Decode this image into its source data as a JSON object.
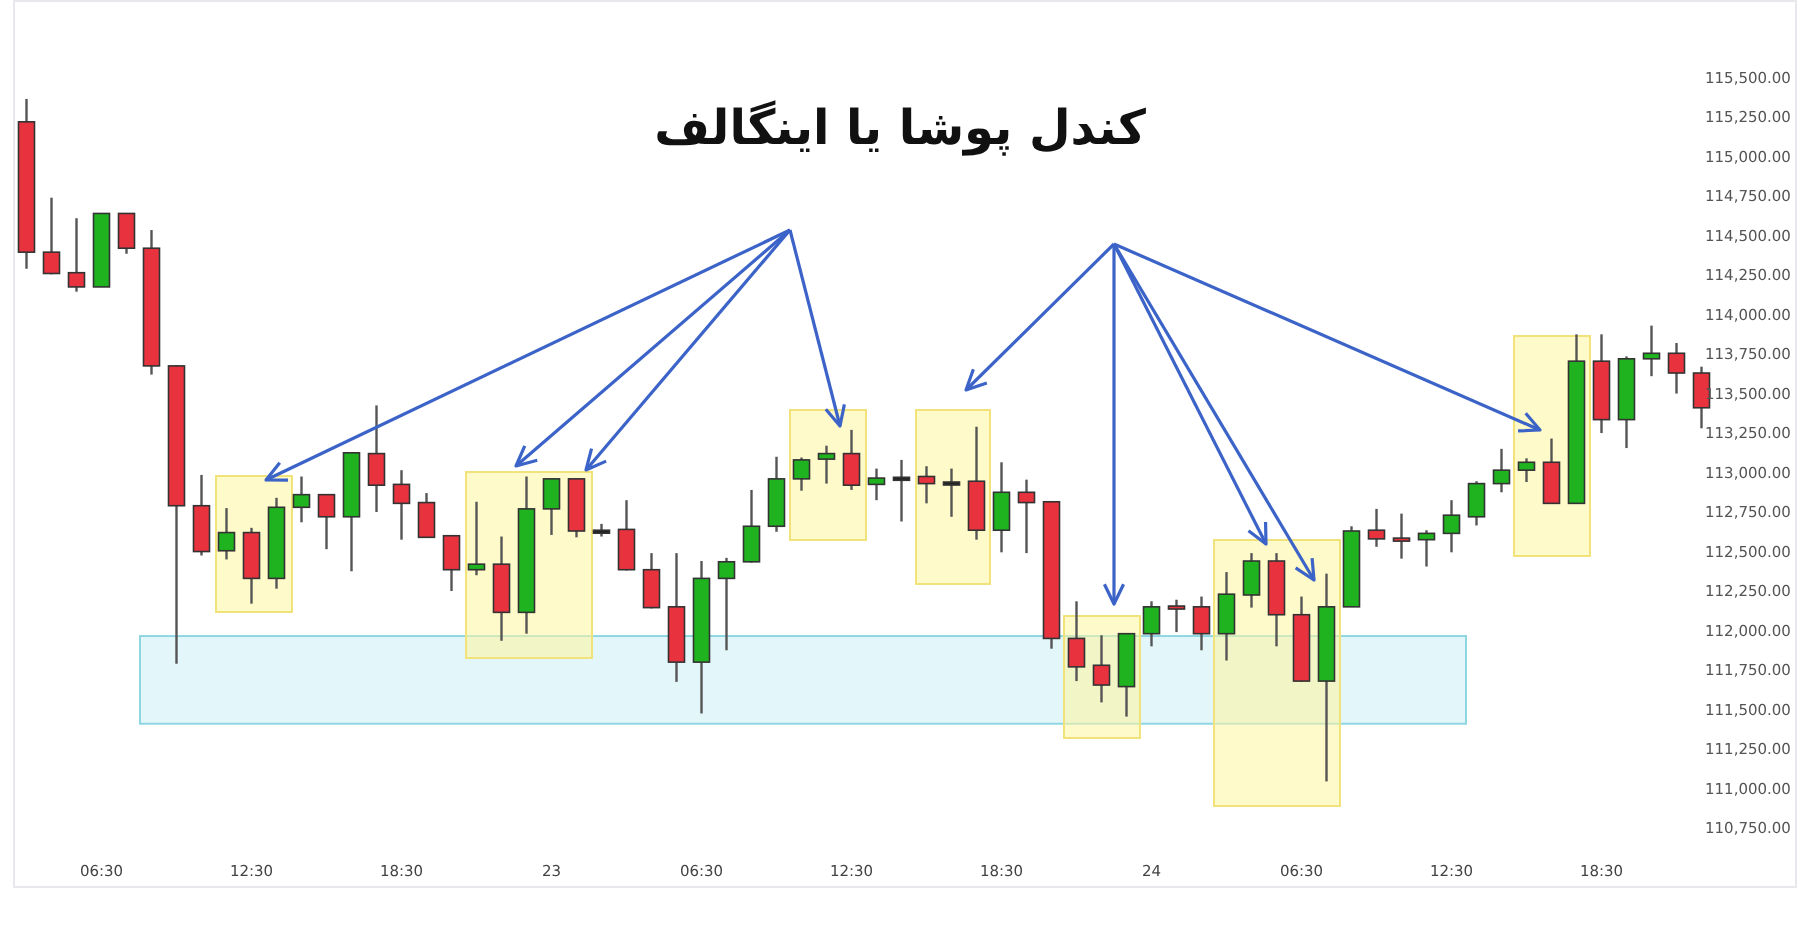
{
  "chart_data": {
    "type": "candlestick",
    "title": "کندل پوشا یا اینگالف",
    "categories": [
      null,
      null,
      null,
      "06:30",
      null,
      null,
      null,
      null,
      null,
      "12:30",
      null,
      null,
      null,
      null,
      null,
      "18:30",
      null,
      null,
      null,
      null,
      null,
      "23",
      null,
      null,
      null,
      null,
      null,
      "06:30",
      null,
      null,
      null,
      null,
      null,
      "12:30",
      null,
      null,
      null,
      null,
      null,
      "18:30",
      null,
      null,
      null,
      null,
      null,
      "24",
      null,
      null,
      null,
      null,
      null,
      "06:30",
      null,
      null,
      null,
      null,
      null,
      "12:30",
      null,
      null,
      null,
      null,
      null,
      "18:30",
      null,
      null,
      null,
      null
    ],
    "ohlc": [
      [
        115220,
        115365,
        114290,
        114395
      ],
      [
        114395,
        114740,
        114255,
        114260
      ],
      [
        114265,
        114610,
        114145,
        114175
      ],
      [
        114175,
        114640,
        114175,
        114640
      ],
      [
        114640,
        114640,
        114385,
        114420
      ],
      [
        114420,
        114535,
        113620,
        113675
      ],
      [
        113675,
        113680,
        111790,
        112790
      ],
      [
        112790,
        112985,
        112475,
        112500
      ],
      [
        112505,
        112775,
        112450,
        112620
      ],
      [
        112620,
        112650,
        112170,
        112330
      ],
      [
        112330,
        112840,
        112265,
        112780
      ],
      [
        112780,
        112975,
        112685,
        112860
      ],
      [
        112860,
        112860,
        112515,
        112720
      ],
      [
        112720,
        113130,
        112375,
        113125
      ],
      [
        113120,
        113425,
        112750,
        112920
      ],
      [
        112925,
        113015,
        112575,
        112805
      ],
      [
        112810,
        112870,
        112590,
        112590
      ],
      [
        112600,
        112600,
        112250,
        112385
      ],
      [
        112385,
        112815,
        112350,
        112420
      ],
      [
        112420,
        112595,
        111935,
        112115
      ],
      [
        112115,
        112975,
        111980,
        112770
      ],
      [
        112770,
        112960,
        112605,
        112960
      ],
      [
        112960,
        112960,
        112590,
        112630
      ],
      [
        112635,
        112675,
        112595,
        112635
      ],
      [
        112640,
        112825,
        112380,
        112385
      ],
      [
        112385,
        112490,
        112140,
        112145
      ],
      [
        112150,
        112490,
        111675,
        111800
      ],
      [
        111800,
        112440,
        111475,
        112330
      ],
      [
        112330,
        112460,
        111875,
        112435
      ],
      [
        112435,
        112890,
        112430,
        112660
      ],
      [
        112660,
        113100,
        112625,
        112960
      ],
      [
        112960,
        113095,
        112885,
        113080
      ],
      [
        113085,
        113170,
        112930,
        113120
      ],
      [
        113120,
        113270,
        112890,
        112920
      ],
      [
        112925,
        113025,
        112825,
        112965
      ],
      [
        112970,
        113080,
        112690,
        112970
      ],
      [
        112975,
        113040,
        112805,
        112930
      ],
      [
        112940,
        113025,
        112720,
        112940
      ],
      [
        112945,
        113290,
        112575,
        112635
      ],
      [
        112635,
        113065,
        112495,
        112875
      ],
      [
        112875,
        112955,
        112490,
        112810
      ],
      [
        112815,
        112815,
        111885,
        111950
      ],
      [
        111950,
        112185,
        111680,
        111770
      ],
      [
        111780,
        111970,
        111545,
        111655
      ],
      [
        111645,
        111980,
        111455,
        111980
      ],
      [
        111980,
        112185,
        111900,
        112150
      ],
      [
        112155,
        112195,
        111990,
        112150
      ],
      [
        112150,
        112215,
        111875,
        111980
      ],
      [
        111980,
        112370,
        111810,
        112230
      ],
      [
        112225,
        112490,
        112145,
        112440
      ],
      [
        112440,
        112490,
        111900,
        112100
      ],
      [
        112100,
        112215,
        111675,
        111680
      ],
      [
        111680,
        112360,
        111045,
        112150
      ],
      [
        112150,
        112660,
        112150,
        112630
      ],
      [
        112635,
        112770,
        112530,
        112580
      ],
      [
        112585,
        112740,
        112455,
        112580
      ],
      [
        112575,
        112635,
        112405,
        112615
      ],
      [
        112615,
        112825,
        112495,
        112730
      ],
      [
        112720,
        112945,
        112665,
        112930
      ],
      [
        112930,
        113150,
        112875,
        113015
      ],
      [
        113015,
        113090,
        112940,
        113065
      ],
      [
        113065,
        113215,
        112805,
        112805
      ],
      [
        112805,
        113875,
        112805,
        113705
      ],
      [
        113705,
        113875,
        113250,
        113335
      ],
      [
        113335,
        113735,
        113155,
        113720
      ],
      [
        113720,
        113930,
        113610,
        113755
      ],
      [
        113755,
        113820,
        113500,
        113630
      ],
      [
        113630,
        113670,
        113280,
        113410
      ]
    ],
    "colors": [
      "#e8333f",
      "#e8333f",
      "#e8333f",
      "#1fb31f",
      "#e8333f",
      "#e8333f",
      "#e8333f",
      "#e8333f",
      "#1fb31f",
      "#e8333f",
      "#1fb31f",
      "#1fb31f",
      "#e8333f",
      "#1fb31f",
      "#e8333f",
      "#e8333f",
      "#e8333f",
      "#e8333f",
      "#1fb31f",
      "#e8333f",
      "#1fb31f",
      "#1fb31f",
      "#e8333f",
      "#222222",
      "#e8333f",
      "#e8333f",
      "#e8333f",
      "#1fb31f",
      "#1fb31f",
      "#1fb31f",
      "#1fb31f",
      "#1fb31f",
      "#1fb31f",
      "#e8333f",
      "#1fb31f",
      "#222222",
      "#e8333f",
      "#222222",
      "#e8333f",
      "#1fb31f",
      "#e8333f",
      "#e8333f",
      "#e8333f",
      "#e8333f",
      "#1fb31f",
      "#1fb31f",
      "#e8333f",
      "#e8333f",
      "#1fb31f",
      "#1fb31f",
      "#e8333f",
      "#e8333f",
      "#1fb31f",
      "#1fb31f",
      "#e8333f",
      "#e8333f",
      "#1fb31f",
      "#1fb31f",
      "#1fb31f",
      "#1fb31f",
      "#1fb31f",
      "#e8333f",
      "#1fb31f",
      "#e8333f",
      "#1fb31f",
      "#1fb31f",
      "#e8333f",
      "#e8333f"
    ],
    "ylim": [
      110750,
      115500
    ],
    "yticks": [
      {
        "value": 110750,
        "label": "110,750.00"
      },
      {
        "value": 111000,
        "label": "111,000.00"
      },
      {
        "value": 111250,
        "label": "111,250.00"
      },
      {
        "value": 111500,
        "label": "111,500.00"
      },
      {
        "value": 111750,
        "label": "111,750.00"
      },
      {
        "value": 112000,
        "label": "112,000.00"
      },
      {
        "value": 112250,
        "label": "112,250.00"
      },
      {
        "value": 112500,
        "label": "112,500.00"
      },
      {
        "value": 112750,
        "label": "112,750.00"
      },
      {
        "value": 113000,
        "label": "113,000.00"
      },
      {
        "value": 113250,
        "label": "113,250.00"
      },
      {
        "value": 113500,
        "label": "113,500.00"
      },
      {
        "value": 113750,
        "label": "113,750.00"
      },
      {
        "value": 114000,
        "label": "114,000.00"
      },
      {
        "value": 114250,
        "label": "114,250.00"
      },
      {
        "value": 114500,
        "label": "114,500.00"
      },
      {
        "value": 114750,
        "label": "114,750.00"
      },
      {
        "value": 115000,
        "label": "115,000.00"
      },
      {
        "value": 115250,
        "label": "115,250.00"
      },
      {
        "value": 115500,
        "label": "115,500.00"
      }
    ],
    "bands": [
      {
        "axis": "y",
        "from": 111410,
        "to": 111965,
        "color": "#e3f7fa"
      }
    ]
  }
}
